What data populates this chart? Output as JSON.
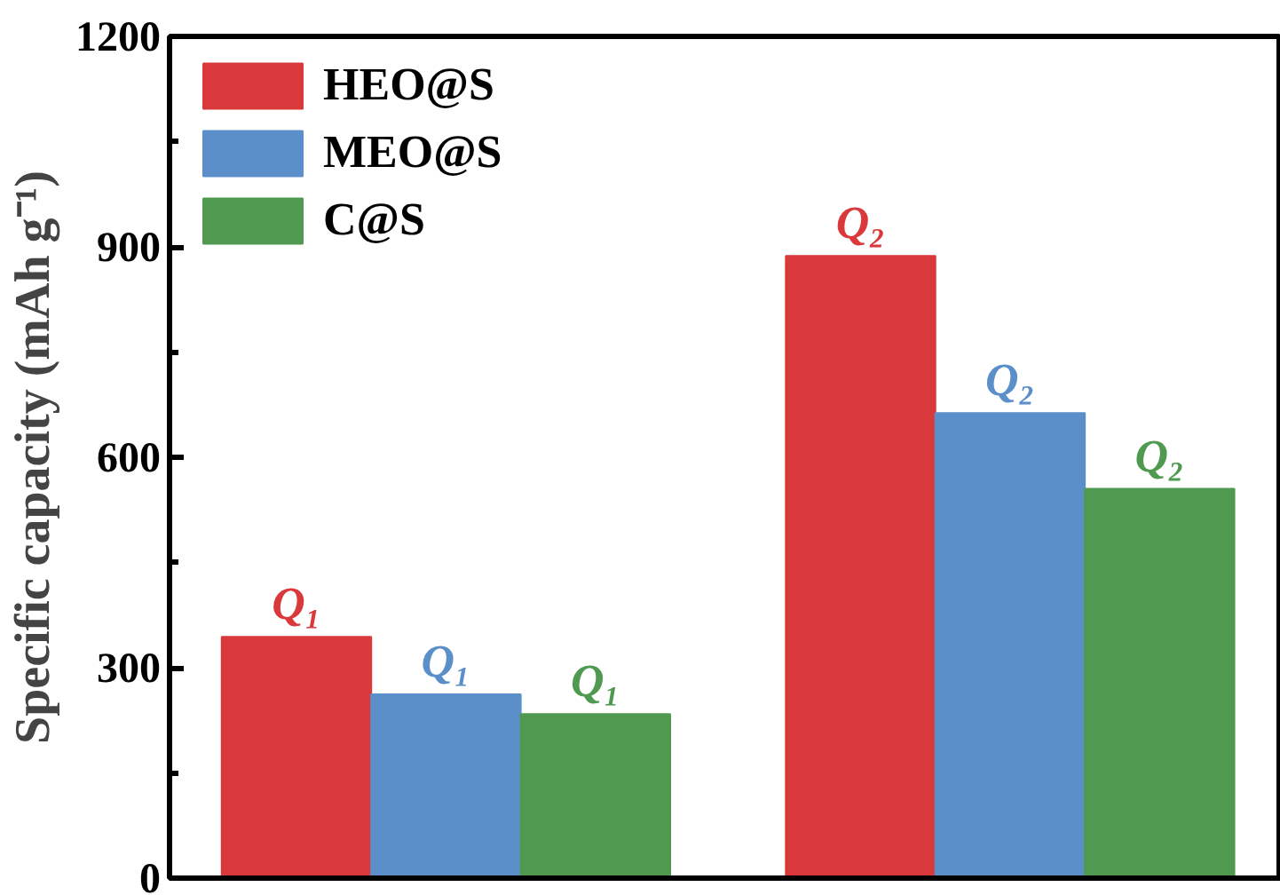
{
  "chart_data": {
    "type": "bar",
    "ylabel": "Specific capacity (mAh g⁻¹)",
    "categories": [
      null,
      null
    ],
    "series": [
      {
        "name": "HEO@S",
        "color": "#d9393b",
        "values": [
          344,
          887
        ],
        "value_labels": [
          "Q₁",
          "Q₂"
        ]
      },
      {
        "name": "MEO@S",
        "color": "#5b8fc9",
        "values": [
          262,
          663
        ],
        "value_labels": [
          "Q₁",
          "Q₂"
        ]
      },
      {
        "name": "C@S",
        "color": "#4f9a50",
        "values": [
          234,
          555
        ],
        "value_labels": [
          "Q₁",
          "Q₂"
        ]
      }
    ],
    "ylim": [
      0,
      1200
    ],
    "yticks": [
      0,
      300,
      600,
      900,
      1200
    ],
    "grid": false,
    "legend": "top left",
    "tick_labels": "y"
  }
}
